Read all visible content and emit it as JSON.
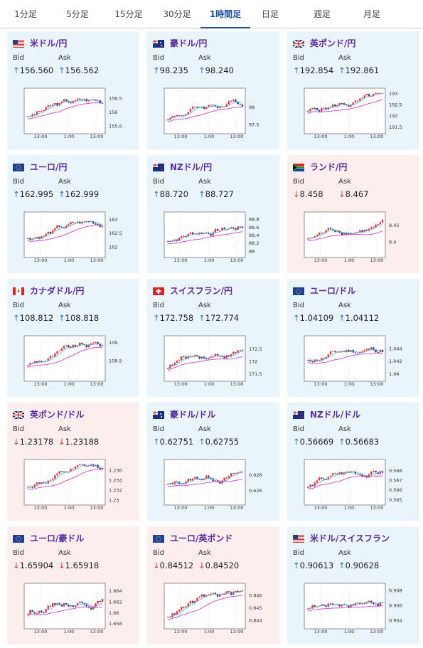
{
  "tabs": [
    {
      "label": "1分足",
      "active": false
    },
    {
      "label": "5分足",
      "active": false
    },
    {
      "label": "15分足",
      "active": false
    },
    {
      "label": "30分足",
      "active": false
    },
    {
      "label": "1時間足",
      "active": true
    },
    {
      "label": "日足",
      "active": false
    },
    {
      "label": "週足",
      "active": false
    },
    {
      "label": "月足",
      "active": false
    }
  ],
  "bid_label": "Bid",
  "ask_label": "Ask",
  "colors": {
    "up_card": "#eaf4fb",
    "down_card": "#fdeeee",
    "title": "#5a2b9e",
    "up_arrow": "#2a6dd3",
    "down_arrow": "#d33",
    "candle_up": "#e33",
    "candle_down": "#2a3a8c",
    "ma_short": "#4ab0d9",
    "ma_long": "#cc3fd1"
  },
  "cards": [
    {
      "title": "米ドル/円",
      "flag": "us-flag",
      "trend": "up",
      "bid": "156.560",
      "ask": "156.562",
      "arrow": "↑",
      "y_ticks": [
        "156.5",
        "156",
        "155.5"
      ],
      "x_ticks": [
        "13:00",
        "1:00",
        "13:00"
      ],
      "ylim": [
        155.3,
        156.75
      ]
    },
    {
      "title": "豪ドル/円",
      "flag": "au-flag",
      "trend": "up",
      "bid": "98.235",
      "ask": "98.240",
      "arrow": "↑",
      "y_ticks": [
        "98",
        "97.5"
      ],
      "x_ticks": [
        "13:00",
        "1:00",
        "13:00"
      ],
      "ylim": [
        97.3,
        98.45
      ]
    },
    {
      "title": "英ポンド/円",
      "flag": "gb-flag",
      "trend": "up",
      "bid": "192.854",
      "ask": "192.861",
      "arrow": "↑",
      "y_ticks": [
        "193",
        "192.5",
        "192",
        "191.5"
      ],
      "x_ticks": [
        "13:00",
        "1:00",
        "13:00"
      ],
      "ylim": [
        191.3,
        193.1
      ]
    },
    {
      "title": "ユーロ/円",
      "flag": "eu-flag",
      "trend": "up",
      "bid": "162.995",
      "ask": "162.999",
      "arrow": "↑",
      "y_ticks": [
        "163",
        "162.5",
        "162"
      ],
      "x_ticks": [
        "13:00",
        "1:00",
        "13:00"
      ],
      "ylim": [
        161.7,
        163.15
      ]
    },
    {
      "title": "NZドル/円",
      "flag": "nz-flag",
      "trend": "up",
      "bid": "88.720",
      "ask": "88.727",
      "arrow": "↑",
      "y_ticks": [
        "88.8",
        "88.6",
        "88.4",
        "88.2",
        "88"
      ],
      "x_ticks": [
        "13:00",
        "1:00",
        "13:00"
      ],
      "ylim": [
        87.9,
        88.9
      ]
    },
    {
      "title": "ランド/円",
      "flag": "za-flag",
      "trend": "down",
      "bid": "8.458",
      "ask": "8.467",
      "arrow": "↓",
      "y_ticks": [
        "8.45",
        "8.4"
      ],
      "x_ticks": [
        "13:00",
        "1:00",
        "13:00"
      ],
      "ylim": [
        8.36,
        8.48
      ]
    },
    {
      "title": "カナダドル/円",
      "flag": "ca-flag",
      "trend": "up",
      "bid": "108.812",
      "ask": "108.818",
      "arrow": "↑",
      "y_ticks": [
        "109",
        "108.5"
      ],
      "x_ticks": [
        "13:00",
        "1:00",
        "13:00"
      ],
      "ylim": [
        108.0,
        109.1
      ]
    },
    {
      "title": "スイスフラン/円",
      "flag": "ch-flag",
      "trend": "up",
      "bid": "172.758",
      "ask": "172.774",
      "arrow": "↑",
      "y_ticks": [
        "172.5",
        "172",
        "171.5"
      ],
      "x_ticks": [
        "13:00",
        "1:00",
        "13:00"
      ],
      "ylim": [
        171.3,
        172.9
      ]
    },
    {
      "title": "ユーロ/ドル",
      "flag": "eu-flag",
      "trend": "up",
      "bid": "1.04109",
      "ask": "1.04112",
      "arrow": "↑",
      "y_ticks": [
        "1.044",
        "1.042",
        "1.04"
      ],
      "x_ticks": [
        "13:00",
        "1:00",
        "13:00"
      ],
      "ylim": [
        1.0392,
        1.0455
      ]
    },
    {
      "title": "英ポンド/ドル",
      "flag": "gb-flag",
      "trend": "down",
      "bid": "1.23178",
      "ask": "1.23188",
      "arrow": "↓",
      "y_ticks": [
        "1.236",
        "1.234",
        "1.232",
        "1.23"
      ],
      "x_ticks": [
        "13:00",
        "1:00",
        "13:00"
      ],
      "ylim": [
        1.2295,
        1.2375
      ]
    },
    {
      "title": "豪ドル/ドル",
      "flag": "au-flag",
      "trend": "up",
      "bid": "0.62751",
      "ask": "0.62755",
      "arrow": "↑",
      "y_ticks": [
        "0.628",
        "0.626"
      ],
      "x_ticks": [
        "13:00",
        "1:00",
        "13:00"
      ],
      "ylim": [
        0.6245,
        0.6295
      ]
    },
    {
      "title": "NZドル/ドル",
      "flag": "nz-flag",
      "trend": "up",
      "bid": "0.56669",
      "ask": "0.56683",
      "arrow": "↑",
      "y_ticks": [
        "0.568",
        "0.567",
        "0.566",
        "0.565"
      ],
      "x_ticks": [
        "13:00",
        "1:00",
        "13:00"
      ],
      "ylim": [
        0.5647,
        0.5688
      ]
    },
    {
      "title": "ユーロ/豪ドル",
      "flag": "eu-flag",
      "trend": "down",
      "bid": "1.65904",
      "ask": "1.65918",
      "arrow": "↓",
      "y_ticks": [
        "1.664",
        "1.662",
        "1.66",
        "1.658"
      ],
      "x_ticks": [
        "13:00",
        "1:00",
        "13:00"
      ],
      "ylim": [
        1.6575,
        1.6648
      ]
    },
    {
      "title": "ユーロ/英ポンド",
      "flag": "eu-flag",
      "trend": "down",
      "bid": "0.84512",
      "ask": "0.84520",
      "arrow": "↓",
      "y_ticks": [
        "0.846",
        "0.845",
        "0.844"
      ],
      "x_ticks": [
        "13:00",
        "1:00",
        "13:00"
      ],
      "ylim": [
        0.8435,
        0.8467
      ]
    },
    {
      "title": "米ドル/スイスフラン",
      "flag": "us-flag",
      "trend": "up",
      "bid": "0.90613",
      "ask": "0.90628",
      "arrow": "↑",
      "y_ticks": [
        "0.908",
        "0.906",
        "0.904"
      ],
      "x_ticks": [
        "13:00",
        "1:00",
        "13:00"
      ],
      "ylim": [
        0.9032,
        0.9085
      ]
    }
  ]
}
